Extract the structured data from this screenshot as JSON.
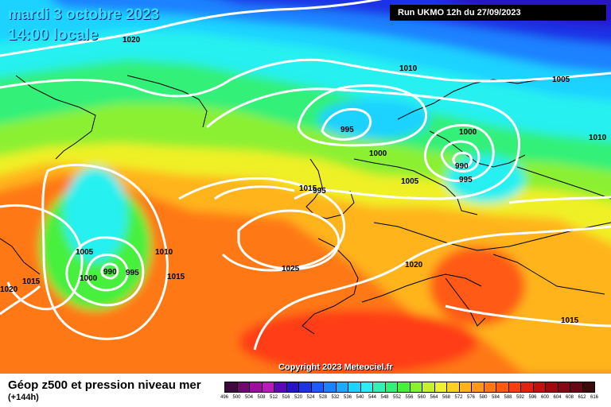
{
  "header": {
    "date_line": "mardi 3 octobre 2023",
    "time_line": "14:00 locale",
    "run": "Run UKMO 12h du 27/09/2023"
  },
  "footer": {
    "title": "Géop z500 et pression niveau mer",
    "subtitle": "(+144h)",
    "copyright": "Copyright 2023 Meteociel.fr"
  },
  "scale": {
    "labels": [
      "496",
      "500",
      "504",
      "508",
      "512",
      "516",
      "520",
      "524",
      "528",
      "532",
      "536",
      "540",
      "544",
      "548",
      "552",
      "556",
      "560",
      "564",
      "568",
      "572",
      "576",
      "580",
      "584",
      "588",
      "592",
      "596",
      "600",
      "604",
      "608",
      "612",
      "616"
    ],
    "colors": [
      "#3c0a3c",
      "#6e0a6e",
      "#9a109a",
      "#b41eb4",
      "#5a0ab4",
      "#2814c8",
      "#1e32e6",
      "#1e5aff",
      "#1e82ff",
      "#1eaaff",
      "#1ed2ff",
      "#28f0f0",
      "#32f0b4",
      "#32f078",
      "#46f03c",
      "#8cf032",
      "#c8f028",
      "#f0f028",
      "#ffd21e",
      "#ffb41e",
      "#ff961e",
      "#ff7814",
      "#ff5a14",
      "#ff3c14",
      "#e61e14",
      "#c80f0f",
      "#a00a0a",
      "#820a14",
      "#640a14",
      "#3c0a0a"
    ]
  },
  "pressure_labels": [
    "1020",
    "1010",
    "1005",
    "995",
    "1000",
    "1000",
    "990",
    "995",
    "1010",
    "1005",
    "1015",
    "995",
    "1005",
    "1010",
    "990",
    "995",
    "1000",
    "1015",
    "1015",
    "1020",
    "1025",
    "1020",
    "1015"
  ],
  "colors": {
    "date_text": "#36e0ff",
    "isobar": "#ffffff",
    "coast": "#000000"
  }
}
